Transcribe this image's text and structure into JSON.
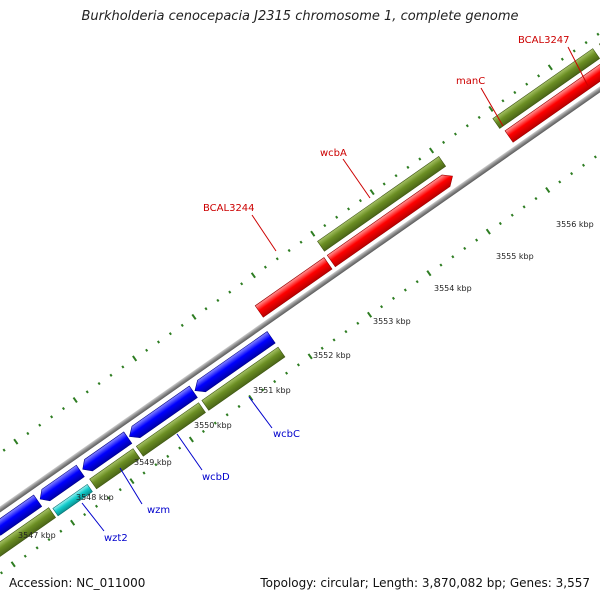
{
  "title": "Burkholderia cenocepacia J2315 chromosome 1, complete genome",
  "footer": {
    "accession": "Accession: NC_011000",
    "summary": "Topology: circular; Length: 3,870,082 bp; Genes: 3,557"
  },
  "colors": {
    "backbone": "#888888",
    "tick": "#2e7d22",
    "cds_green": "#6b8e23",
    "gene_red": "#ff0000",
    "gene_blue": "#0000ff",
    "gene_cyan": "#11cccc",
    "label_red": "#cc0000",
    "label_blue": "#0000cc"
  },
  "scale_labels": [
    "3547 kbp",
    "3548 kbp",
    "3549 kbp",
    "3550 kbp",
    "3551 kbp",
    "3552 kbp",
    "3553 kbp",
    "3554 kbp",
    "3555 kbp",
    "3556 kbp"
  ],
  "gene_labels_forward": [
    "BCAL3244",
    "wcbA",
    "manC",
    "BCAL3247"
  ],
  "gene_labels_reverse": [
    "wzt2",
    "wzm",
    "wcbD",
    "wcbC"
  ]
}
